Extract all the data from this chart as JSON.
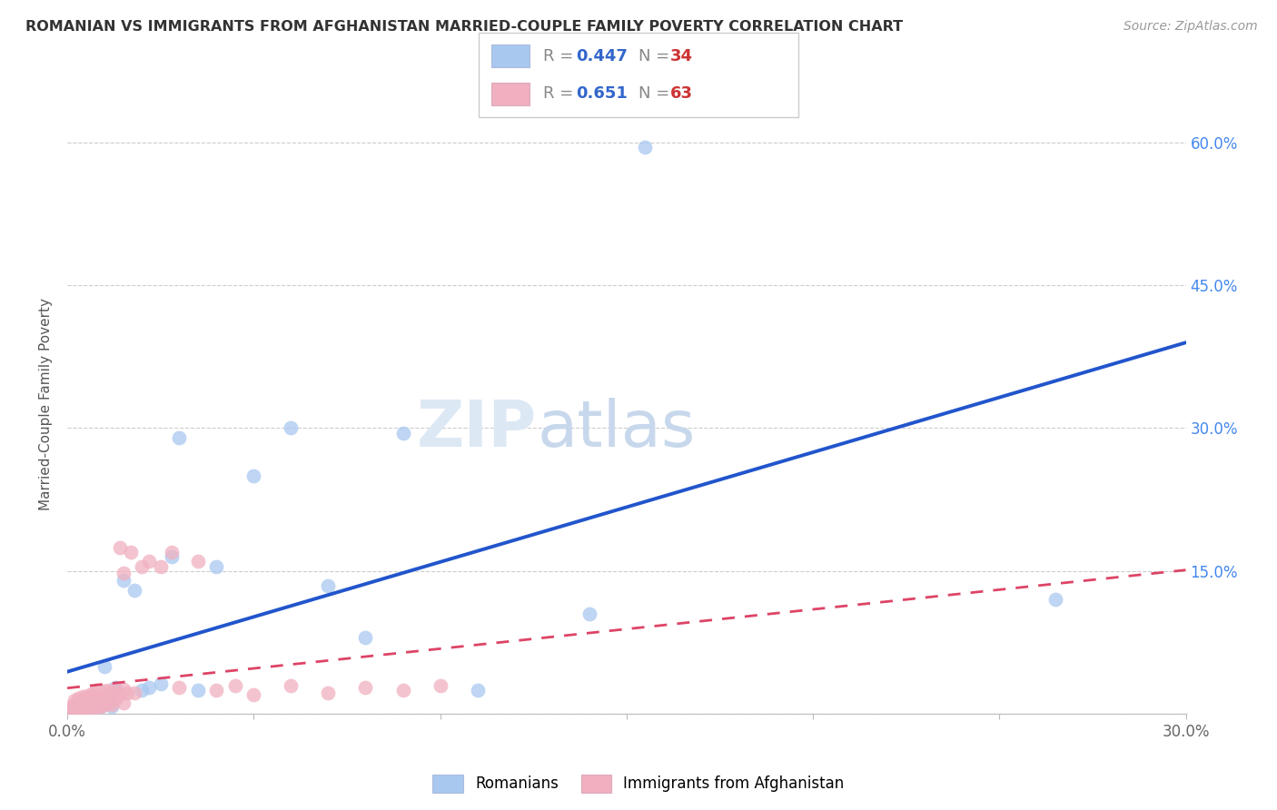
{
  "title": "ROMANIAN VS IMMIGRANTS FROM AFGHANISTAN MARRIED-COUPLE FAMILY POVERTY CORRELATION CHART",
  "source": "Source: ZipAtlas.com",
  "ylabel": "Married-Couple Family Poverty",
  "xlim": [
    0.0,
    0.3
  ],
  "ylim": [
    0.0,
    0.65
  ],
  "xtick_positions": [
    0.0,
    0.05,
    0.1,
    0.15,
    0.2,
    0.25,
    0.3
  ],
  "xticklabels": [
    "0.0%",
    "",
    "",
    "",
    "",
    "",
    "30.0%"
  ],
  "ytick_positions": [
    0.0,
    0.15,
    0.3,
    0.45,
    0.6
  ],
  "yticklabels_right": [
    "",
    "15.0%",
    "30.0%",
    "45.0%",
    "60.0%"
  ],
  "legend_R1": "0.447",
  "legend_N1": "34",
  "legend_R2": "0.651",
  "legend_N2": "63",
  "color_romanian": "#a8c8f0",
  "color_afghan": "#f0b0c0",
  "color_line_romanian": "#2255cc",
  "color_line_afghan": "#dd4466",
  "color_right_yticks": "#4488ee",
  "watermark_color": "#dde8f5",
  "rom_x": [
    0.001,
    0.002,
    0.002,
    0.003,
    0.003,
    0.004,
    0.004,
    0.005,
    0.005,
    0.006,
    0.007,
    0.008,
    0.009,
    0.01,
    0.012,
    0.013,
    0.015,
    0.018,
    0.02,
    0.022,
    0.025,
    0.028,
    0.03,
    0.035,
    0.04,
    0.05,
    0.06,
    0.07,
    0.08,
    0.09,
    0.11,
    0.14,
    0.155,
    0.265
  ],
  "rom_y": [
    0.003,
    0.004,
    0.006,
    0.003,
    0.008,
    0.005,
    0.007,
    0.003,
    0.01,
    0.005,
    0.007,
    0.006,
    0.008,
    0.05,
    0.008,
    0.028,
    0.14,
    0.13,
    0.025,
    0.028,
    0.032,
    0.165,
    0.29,
    0.025,
    0.155,
    0.25,
    0.3,
    0.135,
    0.08,
    0.295,
    0.025,
    0.105,
    0.595,
    0.12
  ],
  "afg_x": [
    0.001,
    0.001,
    0.001,
    0.002,
    0.002,
    0.002,
    0.002,
    0.003,
    0.003,
    0.003,
    0.003,
    0.004,
    0.004,
    0.004,
    0.004,
    0.005,
    0.005,
    0.005,
    0.005,
    0.006,
    0.006,
    0.006,
    0.006,
    0.007,
    0.007,
    0.007,
    0.007,
    0.008,
    0.008,
    0.008,
    0.009,
    0.009,
    0.01,
    0.01,
    0.01,
    0.011,
    0.011,
    0.012,
    0.012,
    0.013,
    0.013,
    0.014,
    0.014,
    0.015,
    0.015,
    0.015,
    0.016,
    0.017,
    0.018,
    0.02,
    0.022,
    0.025,
    0.028,
    0.03,
    0.035,
    0.04,
    0.045,
    0.05,
    0.06,
    0.07,
    0.08,
    0.09,
    0.1
  ],
  "afg_y": [
    0.003,
    0.005,
    0.008,
    0.004,
    0.007,
    0.01,
    0.014,
    0.005,
    0.008,
    0.012,
    0.016,
    0.004,
    0.008,
    0.013,
    0.018,
    0.005,
    0.009,
    0.013,
    0.018,
    0.006,
    0.01,
    0.015,
    0.02,
    0.008,
    0.012,
    0.017,
    0.022,
    0.007,
    0.012,
    0.025,
    0.008,
    0.016,
    0.01,
    0.016,
    0.024,
    0.012,
    0.025,
    0.01,
    0.022,
    0.015,
    0.025,
    0.175,
    0.02,
    0.012,
    0.026,
    0.148,
    0.022,
    0.17,
    0.022,
    0.155,
    0.16,
    0.155,
    0.17,
    0.028,
    0.16,
    0.025,
    0.03,
    0.02,
    0.03,
    0.022,
    0.028,
    0.025,
    0.03
  ]
}
